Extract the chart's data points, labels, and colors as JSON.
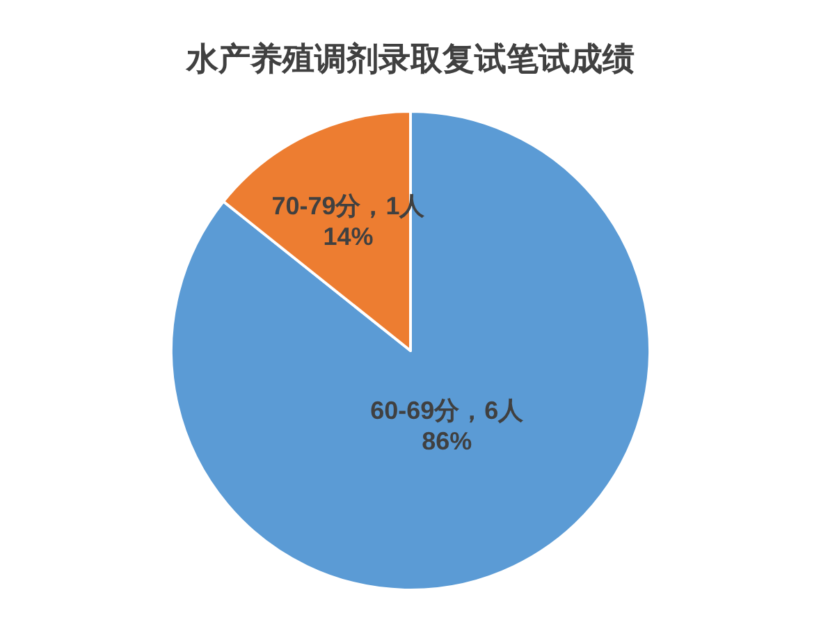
{
  "chart_data": {
    "type": "pie",
    "title": "水产养殖调剂录取复试笔试成绩",
    "categories": [
      "60-69分",
      "70-79分"
    ],
    "values": [
      6,
      1
    ],
    "colors": [
      "#5b9bd5",
      "#ed7d31"
    ],
    "value_labels": [
      "，6人\n86%",
      "，1人\n14%"
    ]
  }
}
